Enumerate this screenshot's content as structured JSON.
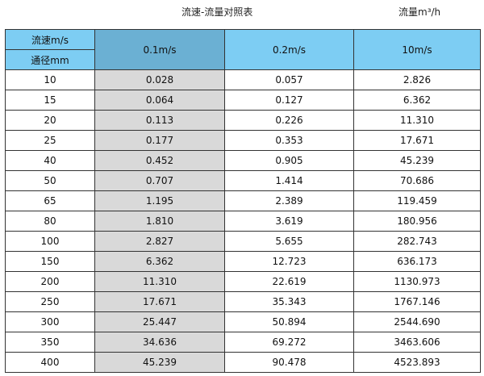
{
  "title": "流速-流量对照表",
  "unit_label": "流量m³/h",
  "header": {
    "velocity_label": "流速m/s",
    "diameter_label": "通径mm",
    "columns": [
      "0.1m/s",
      "0.2m/s",
      "10m/s"
    ]
  },
  "colors": {
    "header": "#7dcdf3",
    "header_highlight": "#6bb0d3",
    "column_highlight": "#d9d9d9"
  },
  "rows": [
    [
      "10",
      "0.028",
      "0.057",
      "2.826"
    ],
    [
      "15",
      "0.064",
      "0.127",
      "6.362"
    ],
    [
      "20",
      "0.113",
      "0.226",
      "11.310"
    ],
    [
      "25",
      "0.177",
      "0.353",
      "17.671"
    ],
    [
      "40",
      "0.452",
      "0.905",
      "45.239"
    ],
    [
      "50",
      "0.707",
      "1.414",
      "70.686"
    ],
    [
      "65",
      "1.195",
      "2.389",
      "119.459"
    ],
    [
      "80",
      "1.810",
      "3.619",
      "180.956"
    ],
    [
      "100",
      "2.827",
      "5.655",
      "282.743"
    ],
    [
      "150",
      "6.362",
      "12.723",
      "636.173"
    ],
    [
      "200",
      "11.310",
      "22.619",
      "1130.973"
    ],
    [
      "250",
      "17.671",
      "35.343",
      "1767.146"
    ],
    [
      "300",
      "25.447",
      "50.894",
      "2544.690"
    ],
    [
      "350",
      "34.636",
      "69.272",
      "3463.606"
    ],
    [
      "400",
      "45.239",
      "90.478",
      "4523.893"
    ]
  ]
}
